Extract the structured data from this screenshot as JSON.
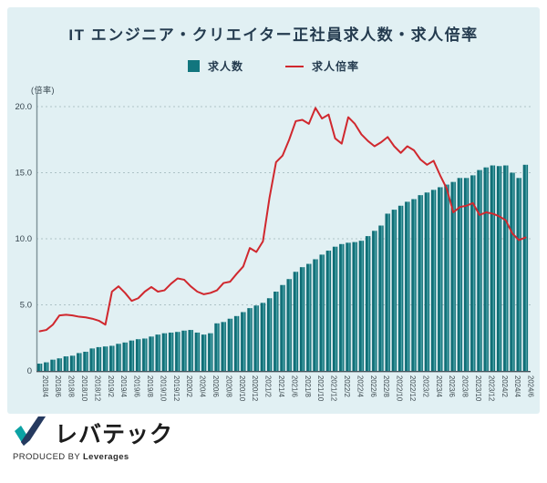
{
  "title": "IT エンジニア・クリエイター正社員求人数・求人倍率",
  "legend": {
    "bar_label": "求人数",
    "line_label": "求人倍率"
  },
  "y_unit_label": "(倍率)",
  "footer": {
    "logo_text": "レバテック",
    "produced_by_prefix": "PRODUCED BY ",
    "produced_by_name": "Leverages"
  },
  "colors": {
    "panel_bg": "#E1F0F3",
    "bar_main": "#12767E",
    "bar_light": "#5FADB1",
    "bar_dark": "#0D666E",
    "line": "#D0282E",
    "title_text": "#243B4F",
    "axis": "#7E9298",
    "grid": "#AEC3C7",
    "tick_text": "#36454E"
  },
  "chart_data": {
    "type": "bar+line",
    "title": "IT エンジニア・クリエイター正社員求人数・求人倍率",
    "ylabel": "(倍率)",
    "ylim": [
      0,
      20
    ],
    "yticks": [
      0,
      5,
      10,
      15,
      20
    ],
    "grid": "horizontal dashed at 5/10/15/20",
    "legend_position": "top center",
    "x_tick_every": 2,
    "x": [
      "2018/4",
      "2018/5",
      "2018/6",
      "2018/7",
      "2018/8",
      "2018/9",
      "2018/10",
      "2018/11",
      "2018/12",
      "2019/1",
      "2019/2",
      "2019/3",
      "2019/4",
      "2019/5",
      "2019/6",
      "2019/7",
      "2019/8",
      "2019/9",
      "2019/10",
      "2019/11",
      "2019/12",
      "2020/1",
      "2020/2",
      "2020/3",
      "2020/4",
      "2020/5",
      "2020/6",
      "2020/7",
      "2020/8",
      "2020/9",
      "2020/10",
      "2020/11",
      "2020/12",
      "2021/1",
      "2021/2",
      "2021/3",
      "2021/4",
      "2021/5",
      "2021/6",
      "2021/7",
      "2021/8",
      "2021/9",
      "2021/10",
      "2021/11",
      "2021/12",
      "2022/1",
      "2022/2",
      "2022/3",
      "2022/4",
      "2022/5",
      "2022/6",
      "2022/7",
      "2022/8",
      "2022/9",
      "2022/10",
      "2022/11",
      "2022/12",
      "2023/1",
      "2023/2",
      "2023/3",
      "2023/4",
      "2023/5",
      "2023/6",
      "2023/7",
      "2023/8",
      "2023/9",
      "2023/10",
      "2023/11",
      "2023/12",
      "2024/1",
      "2024/2",
      "2024/3",
      "2024/4",
      "2024/5",
      "2024/6"
    ],
    "series": [
      {
        "name": "求人数",
        "type": "bar",
        "note": "left-axis scale units; no numeric axis shown for bars in source",
        "values": [
          0.55,
          0.65,
          0.85,
          0.95,
          1.1,
          1.15,
          1.35,
          1.45,
          1.7,
          1.8,
          1.85,
          1.9,
          2.05,
          2.15,
          2.3,
          2.4,
          2.45,
          2.6,
          2.75,
          2.85,
          2.9,
          2.95,
          3.05,
          3.1,
          2.9,
          2.75,
          2.85,
          3.6,
          3.7,
          3.95,
          4.15,
          4.45,
          4.75,
          4.95,
          5.15,
          5.5,
          6.0,
          6.5,
          6.95,
          7.5,
          7.85,
          8.1,
          8.45,
          8.8,
          9.1,
          9.4,
          9.6,
          9.7,
          9.75,
          9.85,
          10.2,
          10.6,
          11.0,
          11.9,
          12.2,
          12.5,
          12.8,
          13.0,
          13.3,
          13.5,
          13.7,
          13.9,
          14.1,
          14.3,
          14.6,
          14.6,
          14.8,
          15.2,
          15.4,
          15.55,
          15.5,
          15.55,
          15.0,
          14.6,
          15.6
        ]
      },
      {
        "name": "求人倍率",
        "type": "line",
        "values": [
          3.0,
          3.1,
          3.5,
          4.2,
          4.25,
          4.2,
          4.1,
          4.05,
          3.95,
          3.8,
          3.5,
          6.0,
          6.4,
          5.9,
          5.3,
          5.5,
          6.0,
          6.35,
          6.0,
          6.1,
          6.6,
          7.0,
          6.9,
          6.4,
          6.0,
          5.8,
          5.9,
          6.1,
          6.65,
          6.75,
          7.35,
          7.9,
          9.3,
          9.0,
          9.8,
          13.1,
          15.8,
          16.3,
          17.5,
          18.9,
          19.0,
          18.7,
          19.9,
          19.1,
          19.4,
          17.6,
          17.2,
          19.2,
          18.7,
          17.9,
          17.4,
          17.0,
          17.3,
          17.7,
          17.0,
          16.5,
          17.0,
          16.7,
          16.0,
          15.6,
          15.9,
          14.8,
          13.8,
          12.0,
          12.4,
          12.5,
          12.7,
          11.8,
          12.0,
          11.9,
          11.7,
          11.4,
          10.4,
          9.9,
          10.1
        ]
      }
    ]
  }
}
